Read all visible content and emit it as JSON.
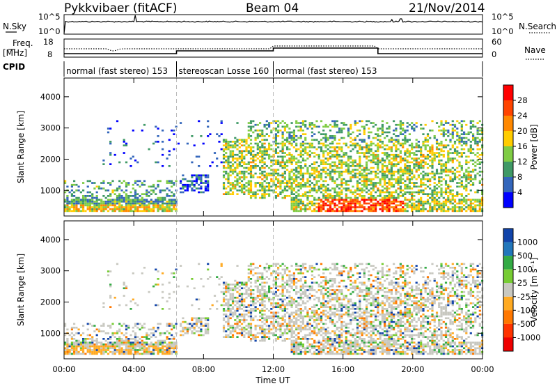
{
  "header": {
    "station": "Pykkvibaer (fitACF)",
    "beam": "Beam 04",
    "date": "21/Nov/2014"
  },
  "top_panels": {
    "nsky_label": "N.Sky",
    "nsearch_label": "N.Search",
    "freq_label_1": "Freq.",
    "freq_label_2": "[MHz]",
    "nave_label": "Nave",
    "cpid_label": "CPID",
    "nsky_ticks": [
      "10^5",
      "10^0"
    ],
    "nsearch_ticks": [
      "10^5",
      "10^0"
    ],
    "freq_ticks": [
      "18",
      "8"
    ],
    "nave_ticks": [
      "60",
      "0"
    ]
  },
  "cpid_segments": [
    {
      "label": "normal (fast stereo) 153",
      "start_hour": 0,
      "end_hour": 6.45
    },
    {
      "label": "stereoscan Losse 160",
      "start_hour": 6.45,
      "end_hour": 12.0
    },
    {
      "label": "normal (fast stereo) 153",
      "start_hour": 12.0,
      "end_hour": 24.0
    }
  ],
  "power_colorbar": {
    "title": "Power [dB]",
    "ticks": [
      "28",
      "24",
      "20",
      "16",
      "12",
      "8",
      "4"
    ],
    "colors": [
      "#ff0000",
      "#ff4400",
      "#ff8800",
      "#ffcc00",
      "#7fcc44",
      "#3f9966",
      "#3366bb",
      "#0000ff"
    ]
  },
  "velocity_colorbar": {
    "title": "Velocity [m s⁻¹]",
    "ticks": [
      "1000",
      "500",
      "100",
      "25",
      "-25",
      "-100",
      "-500",
      "-1000"
    ],
    "colors": [
      "#1144aa",
      "#2277bb",
      "#33aa44",
      "#77cc33",
      "#c8c8c0",
      "#ffaa22",
      "#ff7700",
      "#ff3300",
      "#ee0000"
    ]
  },
  "chart_data": [
    {
      "type": "heatmap",
      "name": "power",
      "ylabel": "Slant Range [km]",
      "xlabel": "Time UT",
      "x_ticks": [
        "00:00",
        "04:00",
        "08:00",
        "12:00",
        "16:00",
        "20:00",
        "00:00"
      ],
      "y_ticks": [
        "1000",
        "2000",
        "3000",
        "4000"
      ],
      "xlim_hours": [
        0,
        24
      ],
      "ylim_km": [
        180,
        4600
      ],
      "vertical_markers_hours": [
        6.45,
        12.0
      ],
      "regions": [
        {
          "t0": 0.0,
          "t1": 6.4,
          "r0": 300,
          "r1": 1300,
          "level": "low-mid"
        },
        {
          "t0": 6.5,
          "t1": 8.2,
          "r0": 900,
          "r1": 1500,
          "level": "low"
        },
        {
          "t0": 9.0,
          "t1": 10.5,
          "r0": 700,
          "r1": 2700,
          "level": "high"
        },
        {
          "t0": 10.5,
          "t1": 24.0,
          "r0": 700,
          "r1": 3200,
          "level": "mid-high"
        },
        {
          "t0": 14.5,
          "t1": 19.5,
          "r0": 300,
          "r1": 700,
          "level": "high"
        }
      ]
    },
    {
      "type": "heatmap",
      "name": "velocity",
      "ylabel": "Slant Range [km]",
      "xlabel": "Time UT",
      "x_ticks": [
        "00:00",
        "04:00",
        "08:00",
        "12:00",
        "16:00",
        "20:00",
        "00:00"
      ],
      "y_ticks": [
        "1000",
        "2000",
        "3000",
        "4000"
      ],
      "xlim_hours": [
        0,
        24
      ],
      "ylim_km": [
        180,
        4600
      ],
      "vertical_markers_hours": [
        6.45,
        12.0
      ]
    }
  ]
}
